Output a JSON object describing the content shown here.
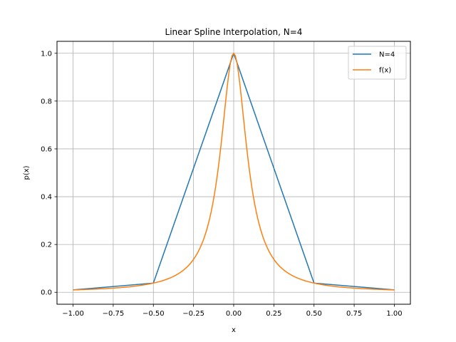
{
  "chart_data": {
    "type": "line",
    "title": "Linear Spline Interpolation, N=4",
    "xlabel": "x",
    "ylabel": "p(x)",
    "xlim": [
      -1.1,
      1.1
    ],
    "ylim": [
      -0.05,
      1.05
    ],
    "xticks": [
      -1.0,
      -0.75,
      -0.5,
      -0.25,
      0.0,
      0.25,
      0.5,
      0.75,
      1.0
    ],
    "xtick_labels": [
      "−1.00",
      "−0.75",
      "−0.50",
      "−0.25",
      "0.00",
      "0.25",
      "0.50",
      "0.75",
      "1.00"
    ],
    "yticks": [
      0.0,
      0.2,
      0.4,
      0.6,
      0.8,
      1.0
    ],
    "ytick_labels": [
      "0.0",
      "0.2",
      "0.4",
      "0.6",
      "0.8",
      "1.0"
    ],
    "grid": true,
    "legend_position": "top-right",
    "series": [
      {
        "name": "N=4",
        "color": "#1f77b4",
        "x": [
          -1.0,
          -0.5,
          0.0,
          0.5,
          1.0
        ],
        "y": [
          0.0099,
          0.0385,
          1.0,
          0.0385,
          0.0099
        ]
      },
      {
        "name": "f(x)",
        "color": "#ff7f0e",
        "function": "1/(1+100x^2)",
        "x_range": [
          -1.0,
          1.0
        ],
        "samples": 201
      }
    ]
  }
}
